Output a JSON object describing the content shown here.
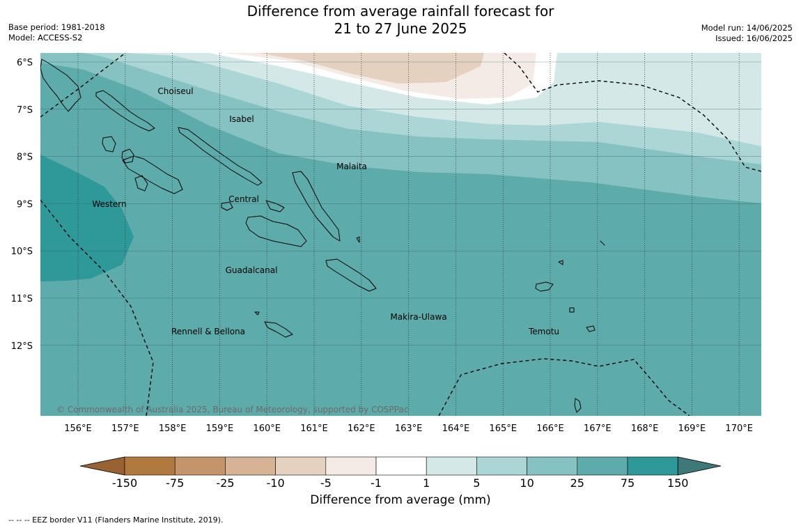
{
  "header": {
    "title_line1": "Difference from average rainfall forecast for",
    "title_line2": "21 to 27 June 2025",
    "base_period": "Base period: 1981-2018",
    "model": "Model: ACCESS-S2",
    "model_run": "Model run: 14/06/2025",
    "issued": "Issued: 16/06/2025"
  },
  "map": {
    "longitude_labels": [
      "156°E",
      "157°E",
      "158°E",
      "159°E",
      "160°E",
      "161°E",
      "162°E",
      "163°E",
      "164°E",
      "165°E",
      "166°E",
      "167°E",
      "168°E",
      "169°E",
      "170°E"
    ],
    "latitude_labels": [
      "6°S",
      "7°S",
      "8°S",
      "9°S",
      "10°S",
      "11°S",
      "12°S"
    ],
    "regions": [
      "Choiseul",
      "Isabel",
      "Malaita",
      "Western",
      "Central",
      "Guadalcanal",
      "Makira-Ulawa",
      "Rennell & Bellona",
      "Temotu"
    ],
    "copyright": "© Commonwealth of Australia 2025, Bureau of Meteorology, supported by COSPPac",
    "shading_colors": [
      "#e4d1c0",
      "#f4ebe6",
      "#ffffff",
      "#d4e8e8",
      "#acd6d6",
      "#86c2c2",
      "#5eabac",
      "#2f9898"
    ]
  },
  "colorbar": {
    "ticks": [
      "-150",
      "-75",
      "-25",
      "-10",
      "-5",
      "-1",
      "1",
      "5",
      "10",
      "25",
      "75",
      "150"
    ],
    "colors": [
      "#996233",
      "#b07940",
      "#c4956a",
      "#d6b395",
      "#e4d1c0",
      "#f4ebe6",
      "#ffffff",
      "#d4e8e8",
      "#acd6d6",
      "#86c2c2",
      "#5eabac",
      "#2f9898",
      "#3e7878"
    ],
    "title": "Difference from average (mm)"
  },
  "legend": {
    "eez": "--  --  -- EEZ border V11 (Flanders Marine Institute, 2019)."
  }
}
